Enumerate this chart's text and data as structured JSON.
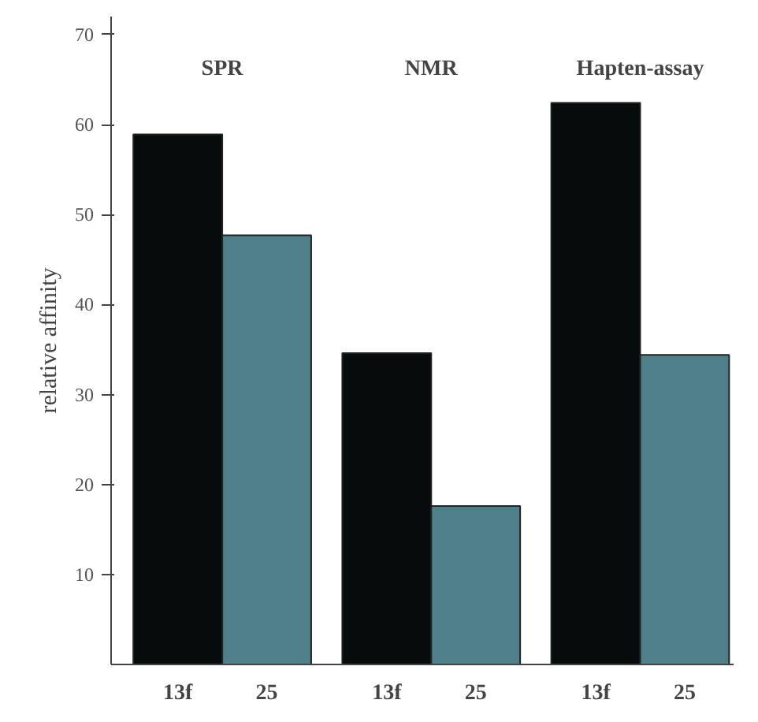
{
  "chart_data": {
    "type": "bar",
    "ylabel": "relative affinity",
    "categories": [
      "13f",
      "25",
      "13f",
      "25",
      "13f",
      "25"
    ],
    "values": [
      58.9,
      47.7,
      34.6,
      17.6,
      62.4,
      34.4
    ],
    "colors": [
      "#060b0c",
      "#4f7f88",
      "#060b0c",
      "#4f7f88",
      "#060b0c",
      "#4f7f88"
    ],
    "annotations": [
      "SPR",
      "NMR",
      "Hapten-assay"
    ],
    "ylim": [
      0,
      72
    ],
    "yticks": [
      10,
      20,
      30,
      40,
      50,
      60,
      70
    ],
    "grid": false
  }
}
